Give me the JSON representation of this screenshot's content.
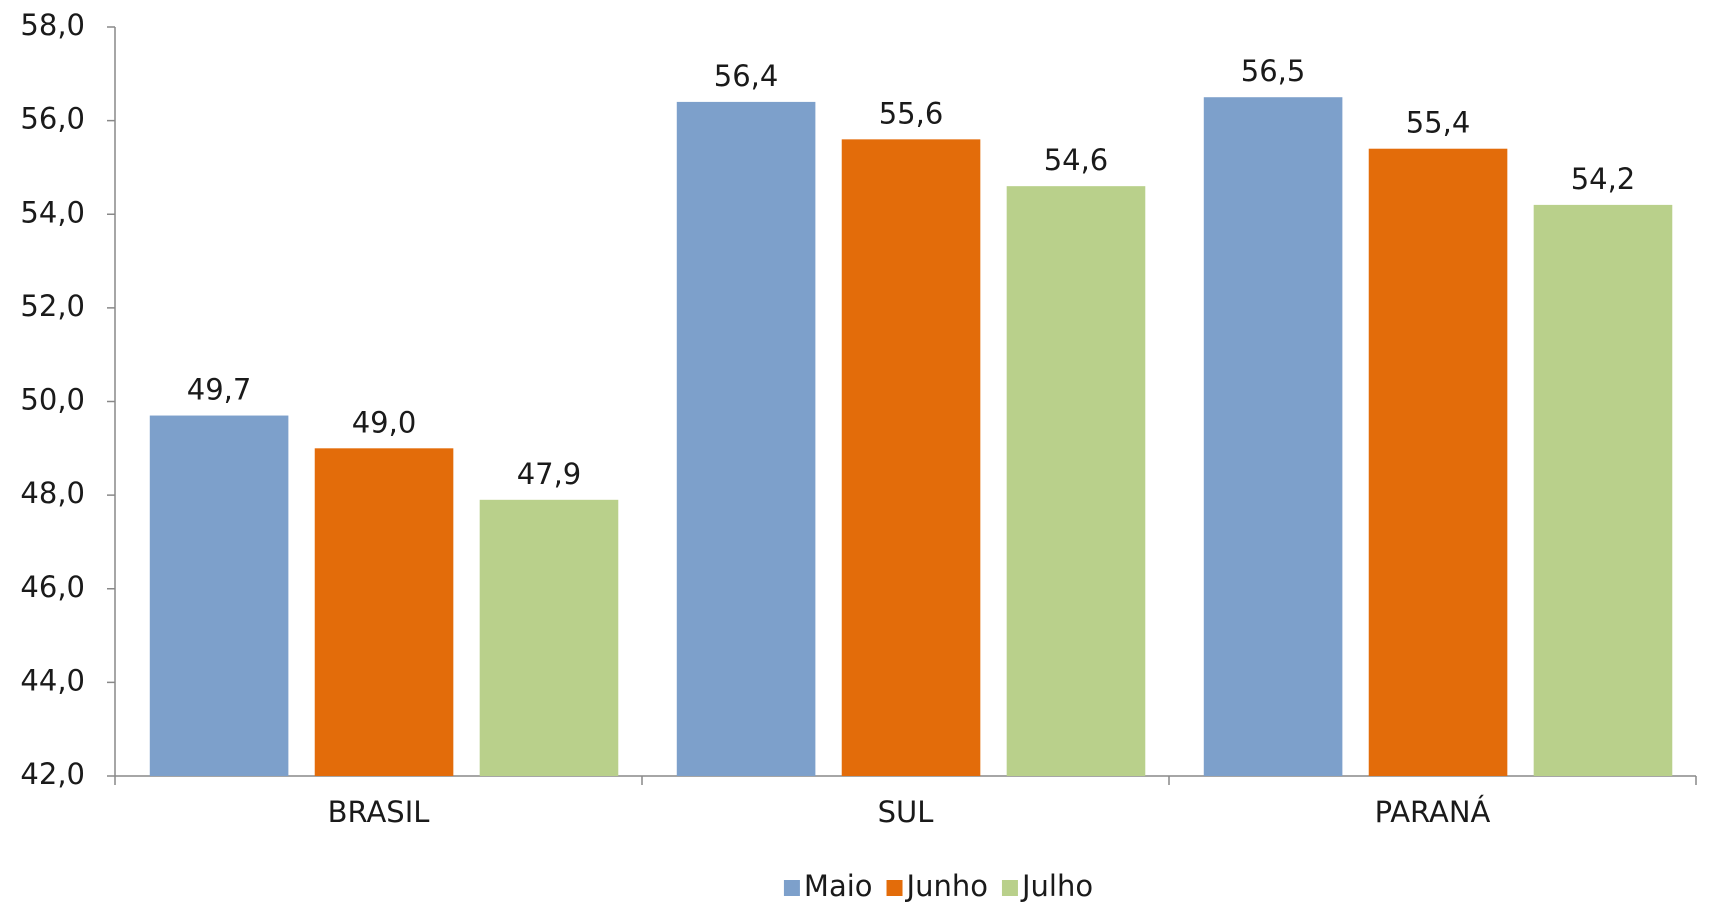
{
  "chart_data": {
    "type": "bar",
    "categories": [
      "BRASIL",
      "SUL",
      "PARANÁ"
    ],
    "series": [
      {
        "name": "Maio",
        "color": "#7da0cb",
        "values": [
          49.7,
          56.4,
          56.5
        ],
        "value_labels": [
          "49,7",
          "56,4",
          "56,5"
        ]
      },
      {
        "name": "Junho",
        "color": "#e36c0a",
        "values": [
          49.0,
          55.6,
          55.4
        ],
        "value_labels": [
          "49,0",
          "55,6",
          "55,4"
        ]
      },
      {
        "name": "Julho",
        "color": "#b9d08b",
        "values": [
          47.9,
          54.6,
          54.2
        ],
        "value_labels": [
          "47,9",
          "54,6",
          "54,2"
        ]
      }
    ],
    "ylim": [
      42,
      58
    ],
    "yticks": [
      {
        "value": 42,
        "label": "42,0"
      },
      {
        "value": 44,
        "label": "44,0"
      },
      {
        "value": 46,
        "label": "46,0"
      },
      {
        "value": 48,
        "label": "48,0"
      },
      {
        "value": 50,
        "label": "50,0"
      },
      {
        "value": 52,
        "label": "52,0"
      },
      {
        "value": 54,
        "label": "54,0"
      },
      {
        "value": 56,
        "label": "56,0"
      },
      {
        "value": 58,
        "label": "58,0"
      }
    ],
    "legend": "bottom"
  }
}
